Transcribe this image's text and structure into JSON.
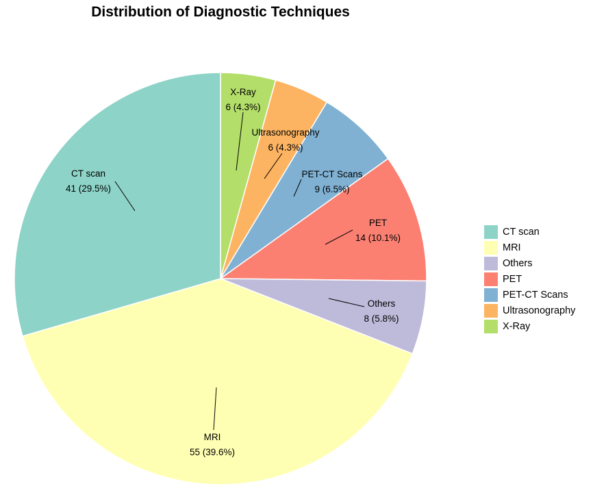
{
  "chart_data": {
    "type": "pie",
    "title": "Distribution of Diagnostic Techniques",
    "slices": [
      {
        "category": "X-Ray",
        "value": 6,
        "label": "6 (4.3%)",
        "color": "#B3DE69"
      },
      {
        "category": "Ultrasonography",
        "value": 6,
        "label": "6 (4.3%)",
        "color": "#FDB462"
      },
      {
        "category": "PET-CT Scans",
        "value": 9,
        "label": "9 (6.5%)",
        "color": "#80B1D3"
      },
      {
        "category": "PET",
        "value": 14,
        "label": "14 (10.1%)",
        "color": "#FB8072"
      },
      {
        "category": "Others",
        "value": 8,
        "label": "8 (5.8%)",
        "color": "#BEBADA"
      },
      {
        "category": "MRI",
        "value": 55,
        "label": "55 (39.6%)",
        "color": "#FFFFB3"
      },
      {
        "category": "CT scan",
        "value": 41,
        "label": "41 (29.5%)",
        "color": "#8DD3C7"
      }
    ],
    "legend": {
      "position": "right",
      "items": [
        "CT scan",
        "MRI",
        "Others",
        "PET",
        "PET-CT Scans",
        "Ultrasonography",
        "X-Ray"
      ]
    }
  }
}
